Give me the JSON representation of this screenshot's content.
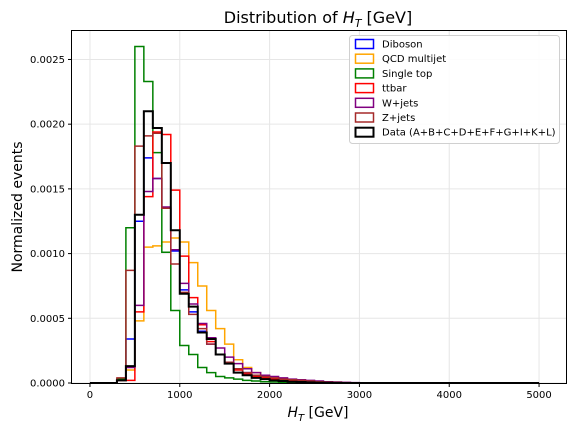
{
  "chart_data": {
    "type": "histogram-step",
    "title_prefix": "Distribution of ",
    "title_var": "H",
    "title_sub": "T",
    "title_suffix": " [GeV]",
    "xlabel_var": "H",
    "xlabel_sub": "T",
    "xlabel_suffix": " [GeV]",
    "ylabel": "Normalized events",
    "xlim": [
      -200,
      5300
    ],
    "ylim": [
      0,
      0.00272
    ],
    "xticks": [
      0,
      1000,
      2000,
      3000,
      4000,
      5000
    ],
    "xtick_labels": [
      "0",
      "1000",
      "2000",
      "3000",
      "4000",
      "5000"
    ],
    "yticks": [
      0,
      0.0005,
      0.001,
      0.0015,
      0.002,
      0.0025
    ],
    "ytick_labels": [
      "0.0000",
      "0.0005",
      "0.0010",
      "0.0015",
      "0.0020",
      "0.0025"
    ],
    "grid": true,
    "legend_position": "top-right",
    "bin_width": 100,
    "bin_edges": [
      0,
      100,
      200,
      300,
      400,
      500,
      600,
      700,
      800,
      900,
      1000,
      1100,
      1200,
      1300,
      1400,
      1500,
      1600,
      1700,
      1800,
      1900,
      2000,
      2100,
      2200,
      2300,
      2400,
      2500,
      2600,
      2700,
      2800,
      2900,
      3000,
      3100,
      3200,
      3300,
      3400,
      3500,
      3600,
      3700,
      3800,
      3900,
      4000,
      4100,
      4200,
      4300,
      4400,
      4500,
      4600,
      4700,
      4800,
      4900,
      5000
    ],
    "series": [
      {
        "name": "Diboson",
        "color": "#0000ff",
        "values": [
          0,
          0,
          0,
          3e-05,
          0.00034,
          0.00125,
          0.00174,
          0.00158,
          0.00135,
          0.00102,
          0.00072,
          0.00055,
          0.0004,
          0.0003,
          0.00022,
          0.00015,
          0.00011,
          8e-05,
          6e-05,
          4e-05,
          3e-05,
          2.5e-05,
          2e-05,
          1.5e-05,
          1e-05,
          1e-05,
          7e-06,
          5e-06,
          3e-06,
          2e-06,
          1e-06,
          0,
          0,
          0,
          0,
          0,
          0,
          0,
          0,
          0,
          0,
          0,
          0,
          0,
          0,
          0,
          0,
          0,
          0,
          0
        ]
      },
      {
        "name": "QCD multijet",
        "color": "#ffa500",
        "values": [
          0,
          0,
          0,
          2e-05,
          0.0001,
          0.00048,
          0.00105,
          0.00106,
          0.00109,
          0.00112,
          0.00109,
          0.00093,
          0.00075,
          0.00056,
          0.00042,
          0.0003,
          0.00018,
          0.00012,
          8e-05,
          5e-05,
          3e-05,
          2e-05,
          1.5e-05,
          1e-05,
          8e-06,
          5e-06,
          3e-06,
          2e-06,
          1e-06,
          1e-06,
          0,
          0,
          0,
          0,
          0,
          0,
          0,
          0,
          0,
          0,
          0,
          0,
          0,
          0,
          0,
          0,
          0,
          0,
          0,
          0
        ]
      },
      {
        "name": "Single top",
        "color": "#008000",
        "values": [
          0,
          0,
          0,
          3e-05,
          0.0012,
          0.0026,
          0.00233,
          0.00178,
          0.00101,
          0.00056,
          0.00029,
          0.00022,
          0.00012,
          8e-05,
          5e-05,
          4e-05,
          3e-05,
          2e-05,
          1.5e-05,
          1e-05,
          8e-06,
          6e-06,
          4e-06,
          3e-06,
          2e-06,
          1e-06,
          0,
          0,
          0,
          0,
          0,
          0,
          0,
          0,
          0,
          0,
          0,
          0,
          0,
          0,
          0,
          0,
          0,
          0,
          0,
          0,
          0,
          0,
          0,
          0
        ]
      },
      {
        "name": "ttbar",
        "color": "#ff0000",
        "values": [
          0,
          0,
          0,
          2e-05,
          2e-05,
          0.00055,
          0.00144,
          0.00194,
          0.00192,
          0.00149,
          0.00098,
          0.00066,
          0.00045,
          0.00032,
          0.00022,
          0.00015,
          0.0001,
          7e-05,
          5e-05,
          4e-05,
          3e-05,
          2e-05,
          1.5e-05,
          1e-05,
          8e-06,
          5e-06,
          3e-06,
          2e-06,
          1e-06,
          1e-06,
          0,
          0,
          0,
          0,
          0,
          0,
          0,
          0,
          0,
          0,
          0,
          0,
          0,
          0,
          0,
          0,
          0,
          0,
          0,
          0
        ]
      },
      {
        "name": "W+jets",
        "color": "#800080",
        "values": [
          0,
          0,
          0,
          2e-05,
          0.00012,
          0.0006,
          0.00148,
          0.00158,
          0.00136,
          0.00103,
          0.00077,
          0.00061,
          0.00046,
          0.00035,
          0.00027,
          0.0002,
          0.00015,
          0.00011,
          8e-05,
          6e-05,
          5e-05,
          4e-05,
          3e-05,
          2.5e-05,
          2e-05,
          1.5e-05,
          1e-05,
          8e-06,
          5e-06,
          3e-06,
          2e-06,
          0,
          0,
          0,
          0,
          0,
          0,
          0,
          0,
          0,
          0,
          0,
          0,
          0,
          0,
          0,
          0,
          0,
          0,
          0
        ]
      },
      {
        "name": "Z+jets",
        "color": "#a52a2a",
        "values": [
          0,
          0,
          0,
          4e-05,
          0.00087,
          0.00183,
          0.00191,
          0.00193,
          0.00135,
          0.00092,
          0.0007,
          0.00053,
          0.00042,
          0.0003,
          0.00022,
          0.00016,
          0.00011,
          8e-05,
          6e-05,
          5e-05,
          4e-05,
          3e-05,
          2.5e-05,
          2e-05,
          1.5e-05,
          1e-05,
          7e-06,
          5e-06,
          3e-06,
          2e-06,
          1e-06,
          0,
          0,
          0,
          0,
          0,
          0,
          0,
          0,
          0,
          0,
          0,
          0,
          0,
          0,
          0,
          0,
          0,
          0,
          0
        ]
      },
      {
        "name": "Data (A+B+C+D+E+F+G+I+K+L)",
        "color": "#000000",
        "values": [
          0,
          0,
          0,
          2e-05,
          0.00013,
          0.0013,
          0.0021,
          0.00197,
          0.0017,
          0.00118,
          0.00069,
          0.00059,
          0.00039,
          0.00034,
          0.00022,
          0.00015,
          8e-05,
          6e-05,
          4e-05,
          3e-05,
          2e-05,
          1.5e-05,
          1e-05,
          8e-06,
          5e-06,
          3e-06,
          2e-06,
          1e-06,
          0,
          0,
          0,
          0,
          0,
          0,
          0,
          0,
          0,
          0,
          0,
          0,
          0,
          0,
          0,
          0,
          0,
          0,
          0,
          0,
          0,
          0
        ]
      }
    ]
  }
}
